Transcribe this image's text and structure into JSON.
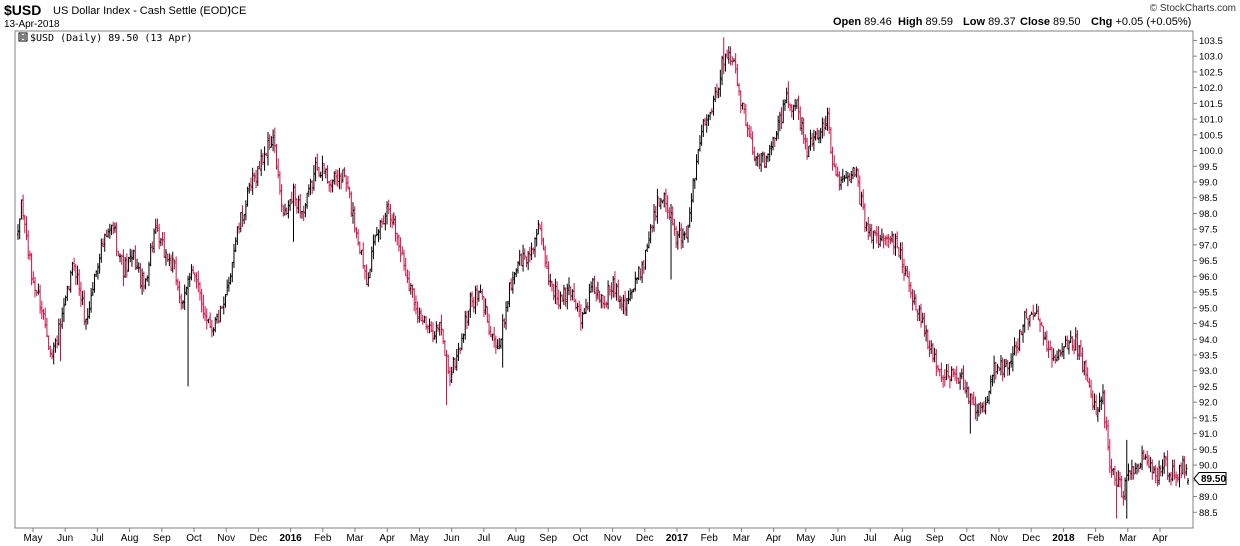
{
  "header": {
    "symbol": "$USD",
    "name": "US Dollar Index - Cash Settle (EOD)",
    "exchange": "ICE",
    "date": "13-Apr-2018",
    "watermark": "© StockCharts.com",
    "quote": [
      {
        "label": "Open",
        "value": "89.46"
      },
      {
        "label": "High",
        "value": "89.59"
      },
      {
        "label": "Low",
        "value": "89.37"
      },
      {
        "label": "Close",
        "value": "89.50"
      },
      {
        "label": "Chg",
        "value": "+0.05 (+0.05%)"
      }
    ]
  },
  "legend": {
    "text": "$USD (Daily) 89.50 (13 Apr)"
  },
  "last_price_label": "89.50",
  "chart_data": {
    "type": "ohlc",
    "series": [
      {
        "name": "$USD (Daily)",
        "values": []
      }
    ],
    "ylim": [
      88.0,
      103.8
    ],
    "yticks": [
      88.5,
      89.0,
      89.5,
      90.0,
      90.5,
      91.0,
      91.5,
      92.0,
      92.5,
      93.0,
      93.5,
      94.0,
      94.5,
      95.0,
      95.5,
      96.0,
      96.5,
      97.0,
      97.5,
      98.0,
      98.5,
      99.0,
      99.5,
      100.0,
      100.5,
      101.0,
      101.5,
      102.0,
      102.5,
      103.0,
      103.5
    ],
    "xticks": [
      {
        "label": "May",
        "bold": false
      },
      {
        "label": "Jun",
        "bold": false
      },
      {
        "label": "Jul",
        "bold": false
      },
      {
        "label": "Aug",
        "bold": false
      },
      {
        "label": "Sep",
        "bold": false
      },
      {
        "label": "Oct",
        "bold": false
      },
      {
        "label": "Nov",
        "bold": false
      },
      {
        "label": "Dec",
        "bold": false
      },
      {
        "label": "2016",
        "bold": true
      },
      {
        "label": "Feb",
        "bold": false
      },
      {
        "label": "Mar",
        "bold": false
      },
      {
        "label": "Apr",
        "bold": false
      },
      {
        "label": "May",
        "bold": false
      },
      {
        "label": "Jun",
        "bold": false
      },
      {
        "label": "Jul",
        "bold": false
      },
      {
        "label": "Aug",
        "bold": false
      },
      {
        "label": "Sep",
        "bold": false
      },
      {
        "label": "Oct",
        "bold": false
      },
      {
        "label": "Nov",
        "bold": false
      },
      {
        "label": "Dec",
        "bold": false
      },
      {
        "label": "2017",
        "bold": true
      },
      {
        "label": "Feb",
        "bold": false
      },
      {
        "label": "Mar",
        "bold": false
      },
      {
        "label": "Apr",
        "bold": false
      },
      {
        "label": "May",
        "bold": false
      },
      {
        "label": "Jun",
        "bold": false
      },
      {
        "label": "Jul",
        "bold": false
      },
      {
        "label": "Aug",
        "bold": false
      },
      {
        "label": "Sep",
        "bold": false
      },
      {
        "label": "Oct",
        "bold": false
      },
      {
        "label": "Nov",
        "bold": false
      },
      {
        "label": "Dec",
        "bold": false
      },
      {
        "label": "2018",
        "bold": true
      },
      {
        "label": "Feb",
        "bold": false
      },
      {
        "label": "Mar",
        "bold": false
      },
      {
        "label": "Apr",
        "bold": false
      }
    ],
    "path_anchors": [
      [
        0,
        97.2
      ],
      [
        2,
        98.4
      ],
      [
        8,
        96.0
      ],
      [
        14,
        95.0
      ],
      [
        20,
        93.5
      ],
      [
        26,
        94.6
      ],
      [
        33,
        96.5
      ],
      [
        40,
        94.5
      ],
      [
        48,
        96.8
      ],
      [
        56,
        97.6
      ],
      [
        62,
        96.2
      ],
      [
        68,
        96.6
      ],
      [
        74,
        95.6
      ],
      [
        80,
        97.4
      ],
      [
        86,
        96.8
      ],
      [
        92,
        96.2
      ],
      [
        97,
        95.0
      ],
      [
        102,
        96.4
      ],
      [
        108,
        95.1
      ],
      [
        114,
        94.4
      ],
      [
        121,
        94.9
      ],
      [
        128,
        97.2
      ],
      [
        136,
        98.7
      ],
      [
        144,
        99.8
      ],
      [
        150,
        100.4
      ],
      [
        156,
        97.8
      ],
      [
        162,
        98.6
      ],
      [
        168,
        98.0
      ],
      [
        176,
        99.6
      ],
      [
        184,
        99.0
      ],
      [
        192,
        99.2
      ],
      [
        200,
        97.2
      ],
      [
        205,
        96.0
      ],
      [
        212,
        97.5
      ],
      [
        218,
        98.3
      ],
      [
        224,
        97.0
      ],
      [
        230,
        95.8
      ],
      [
        236,
        94.8
      ],
      [
        242,
        94.2
      ],
      [
        248,
        94.4
      ],
      [
        254,
        92.8
      ],
      [
        260,
        93.8
      ],
      [
        266,
        95.2
      ],
      [
        272,
        95.4
      ],
      [
        278,
        94.3
      ],
      [
        283,
        93.6
      ],
      [
        288,
        95.4
      ],
      [
        294,
        96.5
      ],
      [
        300,
        96.6
      ],
      [
        306,
        97.5
      ],
      [
        312,
        96.0
      ],
      [
        318,
        95.2
      ],
      [
        325,
        95.6
      ],
      [
        332,
        94.6
      ],
      [
        338,
        95.7
      ],
      [
        344,
        95.1
      ],
      [
        350,
        95.8
      ],
      [
        356,
        95.2
      ],
      [
        362,
        95.6
      ],
      [
        368,
        96.5
      ],
      [
        374,
        98.0
      ],
      [
        380,
        98.8
      ],
      [
        386,
        97.3
      ],
      [
        392,
        97.1
      ],
      [
        398,
        99.2
      ],
      [
        403,
        101.0
      ],
      [
        408,
        101.5
      ],
      [
        412,
        102.2
      ],
      [
        416,
        103.2
      ],
      [
        420,
        103.0
      ],
      [
        426,
        101.3
      ],
      [
        432,
        100.0
      ],
      [
        440,
        99.6
      ],
      [
        446,
        100.6
      ],
      [
        452,
        101.7
      ],
      [
        458,
        101.4
      ],
      [
        464,
        100.0
      ],
      [
        470,
        100.6
      ],
      [
        476,
        100.9
      ],
      [
        480,
        99.3
      ],
      [
        486,
        98.9
      ],
      [
        492,
        99.4
      ],
      [
        498,
        97.7
      ],
      [
        504,
        97.2
      ],
      [
        510,
        97.1
      ],
      [
        516,
        97.2
      ],
      [
        522,
        96.0
      ],
      [
        526,
        95.4
      ],
      [
        532,
        94.5
      ],
      [
        538,
        93.4
      ],
      [
        544,
        92.7
      ],
      [
        550,
        93.1
      ],
      [
        556,
        92.6
      ],
      [
        562,
        91.7
      ],
      [
        568,
        91.7
      ],
      [
        574,
        93.0
      ],
      [
        580,
        93.2
      ],
      [
        586,
        93.6
      ],
      [
        592,
        94.6
      ],
      [
        598,
        94.9
      ],
      [
        604,
        93.8
      ],
      [
        610,
        93.2
      ],
      [
        616,
        93.7
      ],
      [
        622,
        93.9
      ],
      [
        628,
        92.8
      ],
      [
        634,
        91.6
      ],
      [
        638,
        92.2
      ],
      [
        642,
        89.9
      ],
      [
        646,
        89.4
      ],
      [
        650,
        89.2
      ],
      [
        654,
        90.0
      ],
      [
        658,
        89.7
      ],
      [
        662,
        90.3
      ],
      [
        666,
        89.9
      ],
      [
        670,
        89.6
      ],
      [
        674,
        90.1
      ],
      [
        678,
        89.8
      ],
      [
        682,
        89.6
      ],
      [
        686,
        90.0
      ],
      [
        688,
        89.5
      ]
    ],
    "spike_lows": [
      [
        25,
        93.3
      ],
      [
        100,
        92.5
      ],
      [
        162,
        97.1
      ],
      [
        252,
        91.9
      ],
      [
        285,
        93.1
      ],
      [
        384,
        95.9
      ],
      [
        560,
        91.0
      ],
      [
        646,
        88.3
      ],
      [
        652,
        88.3
      ]
    ],
    "spike_highs": [
      [
        150,
        100.5
      ],
      [
        415,
        103.6
      ],
      [
        453,
        102.2
      ],
      [
        597,
        95.1
      ],
      [
        652,
        90.8
      ],
      [
        685,
        90.3
      ]
    ],
    "colors": {
      "up": "#000000",
      "down": "#cc1144",
      "axis": "#808080",
      "price_box": "#ffffff"
    }
  }
}
